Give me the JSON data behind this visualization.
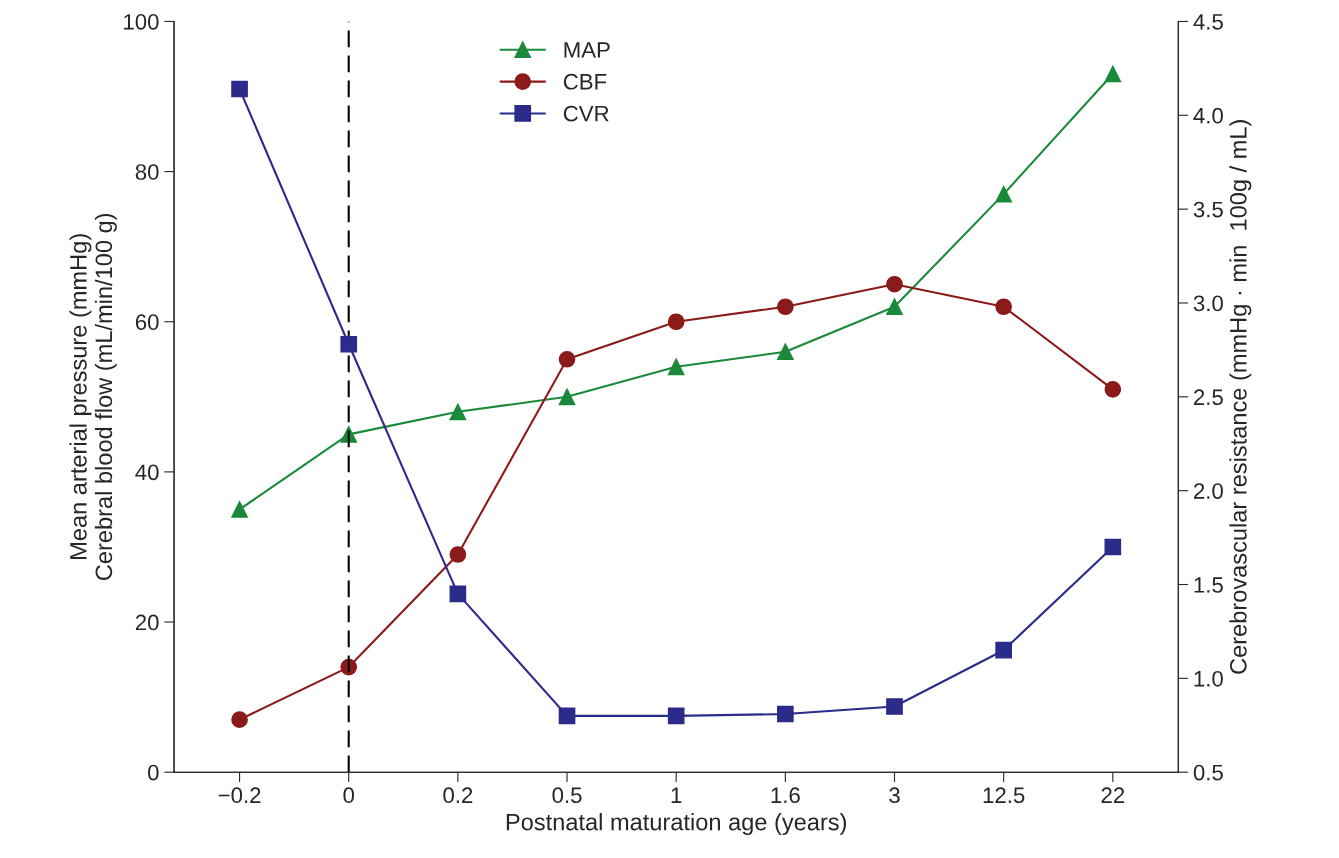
{
  "chart_data": {
    "type": "line",
    "xlabel": "Postnatal maturation age (years)",
    "ylabel": "Mean arterial pressure (mmHg)\nCerebral blood flow (mL/min/100 g)",
    "y2label": "Cerebrovascular resistance (mmHg · min  100g / mL)",
    "categories": [
      "−0.2",
      "0",
      "0.2",
      "0.5",
      "1",
      "1.6",
      "3",
      "12.5",
      "22"
    ],
    "series": [
      {
        "name": "MAP",
        "color": "#1a8a3a",
        "marker": "triangle",
        "values": [
          35,
          45,
          48,
          50,
          54,
          56,
          62,
          77,
          93
        ]
      },
      {
        "name": "CBF",
        "color": "#8b1a1a",
        "marker": "circle",
        "values": [
          7,
          14,
          29,
          55,
          60,
          62,
          65,
          62,
          51
        ]
      },
      {
        "name": "CVR",
        "color": "#2b2b8a",
        "marker": "square",
        "axis": "y2",
        "values": [
          4.14,
          2.78,
          1.45,
          0.8,
          0.8,
          0.81,
          0.85,
          1.15,
          1.7
        ]
      }
    ],
    "ylim": [
      0,
      100
    ],
    "yticks": [
      0,
      20,
      40,
      60,
      80,
      100
    ],
    "y2lim": [
      0.5,
      4.5
    ],
    "y2ticks": [
      {
        "value": 0.5,
        "label": "0.5"
      },
      {
        "value": 1,
        "label": "1.0"
      },
      {
        "value": 1.5,
        "label": "1.5"
      },
      {
        "value": 2,
        "label": "2.0"
      },
      {
        "value": 2.5,
        "label": "2.5"
      },
      {
        "value": 3,
        "label": "3.0"
      },
      {
        "value": 3.5,
        "label": "3.5"
      },
      {
        "value": 4,
        "label": "4.0"
      },
      {
        "value": 4.5,
        "label": "4.5"
      }
    ],
    "ref_lines": [
      {
        "axis": "x",
        "value": "0",
        "color": "#000000",
        "line_style": "dashed"
      }
    ],
    "grid": false,
    "legend": "top",
    "line_style": "solid"
  }
}
